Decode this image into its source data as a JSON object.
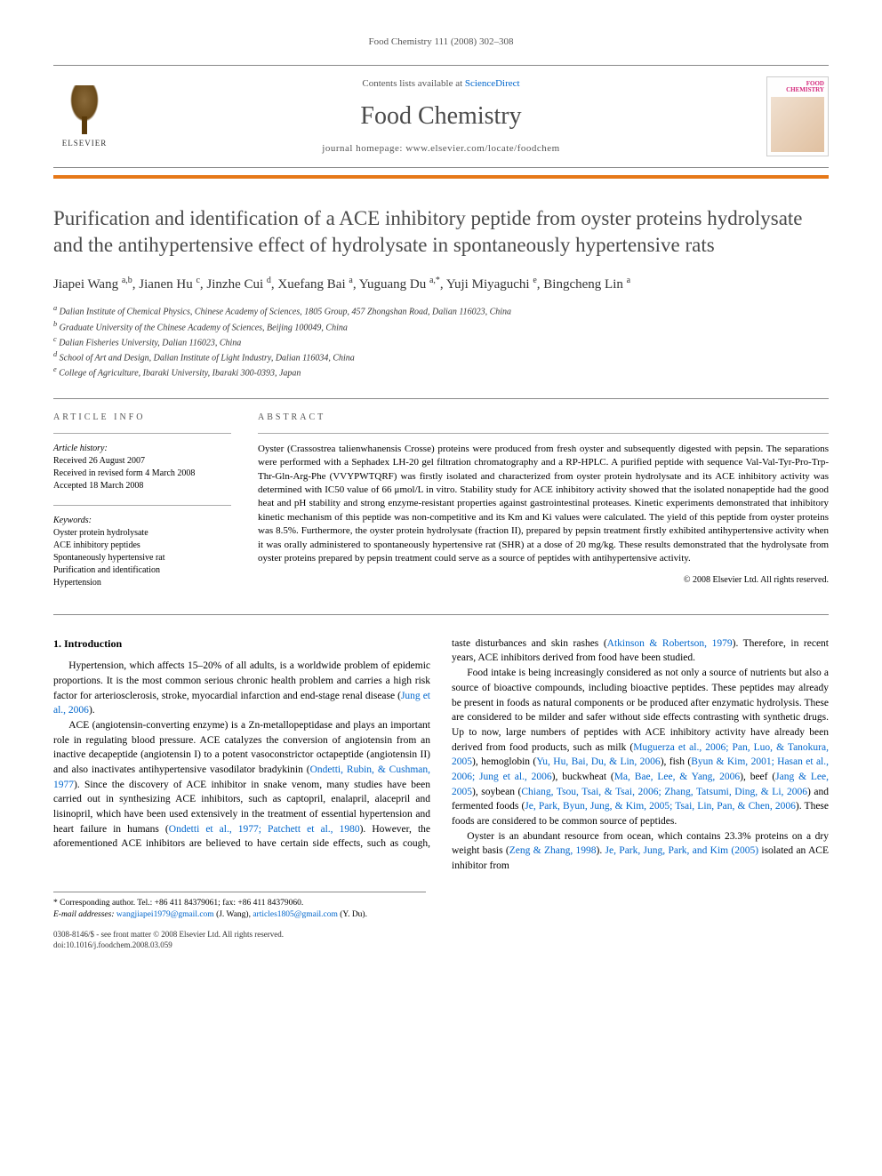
{
  "header": {
    "citation": "Food Chemistry 111 (2008) 302–308"
  },
  "banner": {
    "contents_prefix": "Contents lists available at ",
    "contents_link": "ScienceDirect",
    "journal": "Food Chemistry",
    "homepage_prefix": "journal homepage: ",
    "homepage": "www.elsevier.com/locate/foodchem",
    "publisher_label": "ELSEVIER",
    "cover_label": "FOOD CHEMISTRY"
  },
  "article": {
    "title": "Purification and identification of a ACE inhibitory peptide from oyster proteins hydrolysate and the antihypertensive effect of hydrolysate in spontaneously hypertensive rats",
    "authors_html": "Jiapei Wang <sup>a,b</sup>, Jianen Hu <sup>c</sup>, Jinzhe Cui <sup>d</sup>, Xuefang Bai <sup>a</sup>, Yuguang Du <sup>a,*</sup>, Yuji Miyaguchi <sup>e</sup>, Bingcheng Lin <sup>a</sup>",
    "affiliations": [
      "a Dalian Institute of Chemical Physics, Chinese Academy of Sciences, 1805 Group, 457 Zhongshan Road, Dalian 116023, China",
      "b Graduate University of the Chinese Academy of Sciences, Beijing 100049, China",
      "c Dalian Fisheries University, Dalian 116023, China",
      "d School of Art and Design, Dalian Institute of Light Industry, Dalian 116034, China",
      "e College of Agriculture, Ibaraki University, Ibaraki 300-0393, Japan"
    ]
  },
  "info": {
    "heading": "ARTICLE INFO",
    "history_label": "Article history:",
    "history": [
      "Received 26 August 2007",
      "Received in revised form 4 March 2008",
      "Accepted 18 March 2008"
    ],
    "keywords_label": "Keywords:",
    "keywords": [
      "Oyster protein hydrolysate",
      "ACE inhibitory peptides",
      "Spontaneously hypertensive rat",
      "Purification and identification",
      "Hypertension"
    ]
  },
  "abstract": {
    "heading": "ABSTRACT",
    "text": "Oyster (Crassostrea talienwhanensis Crosse) proteins were produced from fresh oyster and subsequently digested with pepsin. The separations were performed with a Sephadex LH-20 gel filtration chromatography and a RP-HPLC. A purified peptide with sequence Val-Val-Tyr-Pro-Trp-Thr-Gln-Arg-Phe (VVYPWTQRF) was firstly isolated and characterized from oyster protein hydrolysate and its ACE inhibitory activity was determined with IC50 value of 66 μmol/L in vitro. Stability study for ACE inhibitory activity showed that the isolated nonapeptide had the good heat and pH stability and strong enzyme-resistant properties against gastrointestinal proteases. Kinetic experiments demonstrated that inhibitory kinetic mechanism of this peptide was non-competitive and its Km and Ki values were calculated. The yield of this peptide from oyster proteins was 8.5%. Furthermore, the oyster protein hydrolysate (fraction II), prepared by pepsin treatment firstly exhibited antihypertensive activity when it was orally administered to spontaneously hypertensive rat (SHR) at a dose of 20 mg/kg. These results demonstrated that the hydrolysate from oyster proteins prepared by pepsin treatment could serve as a source of peptides with antihypertensive activity.",
    "copyright": "© 2008 Elsevier Ltd. All rights reserved."
  },
  "body": {
    "section_heading": "1. Introduction",
    "p1": "Hypertension, which affects 15–20% of all adults, is a worldwide problem of epidemic proportions. It is the most common serious chronic health problem and carries a high risk factor for arteriosclerosis, stroke, myocardial infarction and end-stage renal disease (",
    "p1_cite": "Jung et al., 2006",
    "p1_end": ").",
    "p2a": "ACE (angiotensin-converting enzyme) is a Zn-metallopeptidase and plays an important role in regulating blood pressure. ACE catalyzes the conversion of angiotensin from an inactive decapeptide (angiotensin I) to a potent vasoconstrictor octapeptide (angiotensin II) and also inactivates antihypertensive vasodilator bradykinin (",
    "p2_cite1": "Ondetti, Rubin, & Cushman, 1977",
    "p2b": "). Since the discovery of ACE inhibitor in snake venom, many studies have been carried out in synthesizing ACE inhibitors, such as captopril, enalapril, alacepril and lisinopril, which have been used extensively in the treatment of essential hypertension and heart failure in humans (",
    "p2_cite2": "Ondetti et al., 1977; Patchett et al., 1980",
    "p2c": "). However, the aforementioned ACE inhibitors are believed to have certain side effects, such as cough, taste disturbances and skin rashes (",
    "p2_cite3": "Atkinson & Robertson, 1979",
    "p2d": "). Therefore, in recent years, ACE inhibitors derived from food have been studied.",
    "p3a": "Food intake is being increasingly considered as not only a source of nutrients but also a source of bioactive compounds, including bioactive peptides. These peptides may already be present in foods as natural components or be produced after enzymatic hydrolysis. These are considered to be milder and safer without side effects contrasting with synthetic drugs. Up to now, large numbers of peptides with ACE inhibitory activity have already been derived from food products, such as milk (",
    "p3_cite1": "Muguerza et al., 2006; Pan, Luo, & Tanokura, 2005",
    "p3b": "), hemoglobin (",
    "p3_cite2": "Yu, Hu, Bai, Du, & Lin, 2006",
    "p3c": "), fish (",
    "p3_cite3": "Byun & Kim, 2001; Hasan et al., 2006; Jung et al., 2006",
    "p3d": "), buckwheat (",
    "p3_cite4": "Ma, Bae, Lee, & Yang, 2006",
    "p3e": "), beef (",
    "p3_cite5": "Jang & Lee, 2005",
    "p3f": "), soybean (",
    "p3_cite6": "Chiang, Tsou, Tsai, & Tsai, 2006; Zhang, Tatsumi, Ding, & Li, 2006",
    "p3g": ") and fermented foods (",
    "p3_cite7": "Je, Park, Byun, Jung, & Kim, 2005; Tsai, Lin, Pan, & Chen, 2006",
    "p3h": "). These foods are considered to be common source of peptides.",
    "p4a": "Oyster is an abundant resource from ocean, which contains 23.3% proteins on a dry weight basis (",
    "p4_cite1": "Zeng & Zhang, 1998",
    "p4b": "). ",
    "p4_cite2": "Je, Park, Jung, Park, and Kim (2005)",
    "p4c": " isolated an ACE inhibitor from"
  },
  "footnotes": {
    "corr": "* Corresponding author. Tel.: +86 411 84379061; fax: +86 411 84379060.",
    "email_label": "E-mail addresses:",
    "email1": "wangjiapei1979@gmail.com",
    "email1_who": " (J. Wang), ",
    "email2": "articles1805@gmail.com",
    "email2_who": " (Y. Du)."
  },
  "footer": {
    "line1": "0308-8146/$ - see front matter © 2008 Elsevier Ltd. All rights reserved.",
    "line2": "doi:10.1016/j.foodchem.2008.03.059"
  }
}
